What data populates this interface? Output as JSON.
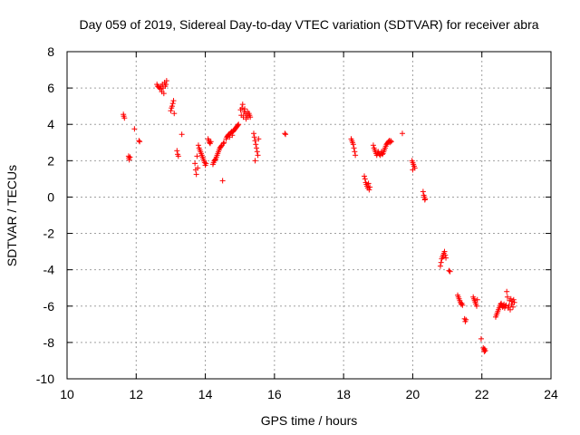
{
  "chart_data": {
    "type": "scatter",
    "title": "Day 059 of 2019, Sidereal Day-to-day VTEC variation (SDTVAR) for receiver abra",
    "xlabel": "GPS time / hours",
    "ylabel": "SDTVAR / TECUs",
    "xlim": [
      10,
      24
    ],
    "ylim": [
      -10,
      8
    ],
    "xticks": [
      "10",
      "12",
      "14",
      "16",
      "18",
      "20",
      "22",
      "24"
    ],
    "yticks": [
      "-10",
      "-8",
      "-6",
      "-4",
      "-2",
      "0",
      "2",
      "4",
      "6",
      "8"
    ],
    "grid": true,
    "marker": "+",
    "color": "#ff0000",
    "series": [
      {
        "name": "SDTVAR",
        "points": [
          [
            11.63,
            4.55
          ],
          [
            11.64,
            4.45
          ],
          [
            11.66,
            4.35
          ],
          [
            11.78,
            2.25
          ],
          [
            11.79,
            2.15
          ],
          [
            11.8,
            2.05
          ],
          [
            11.82,
            2.2
          ],
          [
            11.95,
            3.75
          ],
          [
            12.08,
            3.1
          ],
          [
            12.1,
            3.05
          ],
          [
            12.6,
            6.2
          ],
          [
            12.62,
            6.1
          ],
          [
            12.65,
            6.05
          ],
          [
            12.68,
            6.0
          ],
          [
            12.7,
            5.95
          ],
          [
            12.72,
            6.1
          ],
          [
            12.74,
            5.8
          ],
          [
            12.76,
            6.2
          ],
          [
            12.78,
            6.0
          ],
          [
            12.8,
            5.7
          ],
          [
            12.82,
            6.3
          ],
          [
            12.84,
            6.1
          ],
          [
            12.86,
            6.2
          ],
          [
            12.88,
            6.4
          ],
          [
            13.0,
            4.75
          ],
          [
            13.02,
            4.9
          ],
          [
            13.04,
            5.0
          ],
          [
            13.06,
            5.15
          ],
          [
            13.08,
            5.3
          ],
          [
            13.1,
            4.6
          ],
          [
            13.18,
            2.55
          ],
          [
            13.2,
            2.35
          ],
          [
            13.22,
            2.25
          ],
          [
            13.32,
            3.45
          ],
          [
            13.7,
            1.85
          ],
          [
            13.72,
            1.5
          ],
          [
            13.74,
            1.25
          ],
          [
            13.76,
            2.25
          ],
          [
            13.78,
            1.6
          ],
          [
            13.8,
            2.85
          ],
          [
            13.82,
            2.7
          ],
          [
            13.84,
            2.6
          ],
          [
            13.86,
            2.5
          ],
          [
            13.88,
            2.4
          ],
          [
            13.9,
            2.3
          ],
          [
            13.92,
            2.2
          ],
          [
            13.94,
            2.1
          ],
          [
            13.96,
            2.0
          ],
          [
            13.98,
            1.9
          ],
          [
            14.0,
            1.75
          ],
          [
            14.02,
            1.85
          ],
          [
            14.08,
            3.2
          ],
          [
            14.1,
            3.1
          ],
          [
            14.12,
            3.0
          ],
          [
            14.14,
            2.95
          ],
          [
            14.16,
            3.05
          ],
          [
            14.22,
            1.8
          ],
          [
            14.24,
            1.9
          ],
          [
            14.26,
            2.0
          ],
          [
            14.28,
            2.05
          ],
          [
            14.3,
            2.1
          ],
          [
            14.32,
            2.2
          ],
          [
            14.34,
            2.3
          ],
          [
            14.36,
            2.4
          ],
          [
            14.38,
            2.5
          ],
          [
            14.4,
            2.6
          ],
          [
            14.42,
            2.7
          ],
          [
            14.44,
            2.75
          ],
          [
            14.46,
            2.8
          ],
          [
            14.48,
            2.85
          ],
          [
            14.5,
            0.9
          ],
          [
            14.52,
            2.95
          ],
          [
            14.54,
            3.0
          ],
          [
            14.6,
            3.2
          ],
          [
            14.62,
            3.3
          ],
          [
            14.64,
            3.35
          ],
          [
            14.66,
            3.4
          ],
          [
            14.68,
            3.45
          ],
          [
            14.7,
            3.3
          ],
          [
            14.72,
            3.5
          ],
          [
            14.74,
            3.55
          ],
          [
            14.76,
            3.6
          ],
          [
            14.78,
            3.4
          ],
          [
            14.8,
            3.6
          ],
          [
            14.82,
            3.65
          ],
          [
            14.84,
            3.7
          ],
          [
            14.86,
            3.75
          ],
          [
            14.88,
            3.8
          ],
          [
            14.9,
            3.85
          ],
          [
            14.92,
            3.9
          ],
          [
            14.94,
            3.95
          ],
          [
            14.96,
            4.0
          ],
          [
            15.02,
            4.8
          ],
          [
            15.04,
            4.5
          ],
          [
            15.06,
            4.9
          ],
          [
            15.08,
            5.1
          ],
          [
            15.1,
            4.4
          ],
          [
            15.12,
            4.7
          ],
          [
            15.14,
            4.85
          ],
          [
            15.16,
            4.6
          ],
          [
            15.18,
            4.3
          ],
          [
            15.2,
            4.5
          ],
          [
            15.22,
            4.7
          ],
          [
            15.24,
            4.4
          ],
          [
            15.26,
            4.6
          ],
          [
            15.28,
            4.5
          ],
          [
            15.3,
            4.4
          ],
          [
            15.4,
            3.5
          ],
          [
            15.42,
            3.3
          ],
          [
            15.44,
            3.1
          ],
          [
            15.46,
            2.9
          ],
          [
            15.48,
            2.7
          ],
          [
            15.5,
            2.5
          ],
          [
            15.52,
            2.3
          ],
          [
            15.44,
            2.0
          ],
          [
            15.54,
            3.2
          ],
          [
            16.3,
            3.5
          ],
          [
            16.32,
            3.45
          ],
          [
            18.22,
            3.2
          ],
          [
            18.24,
            3.1
          ],
          [
            18.26,
            3.0
          ],
          [
            18.28,
            2.9
          ],
          [
            18.3,
            2.7
          ],
          [
            18.32,
            2.5
          ],
          [
            18.34,
            2.3
          ],
          [
            18.6,
            1.15
          ],
          [
            18.62,
            1.0
          ],
          [
            18.64,
            0.8
          ],
          [
            18.66,
            0.7
          ],
          [
            18.68,
            0.6
          ],
          [
            18.7,
            0.5
          ],
          [
            18.72,
            0.75
          ],
          [
            18.74,
            0.4
          ],
          [
            18.76,
            0.55
          ],
          [
            18.86,
            2.85
          ],
          [
            18.88,
            2.7
          ],
          [
            18.9,
            2.6
          ],
          [
            18.92,
            2.5
          ],
          [
            18.94,
            2.4
          ],
          [
            18.96,
            2.3
          ],
          [
            18.98,
            2.4
          ],
          [
            19.0,
            2.5
          ],
          [
            19.02,
            2.4
          ],
          [
            19.04,
            2.35
          ],
          [
            19.06,
            2.3
          ],
          [
            19.08,
            2.4
          ],
          [
            19.1,
            2.5
          ],
          [
            19.12,
            2.35
          ],
          [
            19.14,
            2.4
          ],
          [
            19.16,
            2.5
          ],
          [
            19.18,
            2.6
          ],
          [
            19.2,
            2.7
          ],
          [
            19.22,
            2.8
          ],
          [
            19.24,
            2.9
          ],
          [
            19.26,
            2.95
          ],
          [
            19.28,
            3.0
          ],
          [
            19.3,
            3.05
          ],
          [
            19.32,
            3.1
          ],
          [
            19.34,
            3.0
          ],
          [
            19.36,
            3.1
          ],
          [
            19.38,
            3.05
          ],
          [
            19.7,
            3.5
          ],
          [
            19.98,
            2.0
          ],
          [
            20.0,
            1.9
          ],
          [
            20.02,
            1.8
          ],
          [
            20.04,
            1.7
          ],
          [
            20.06,
            1.6
          ],
          [
            20.0,
            1.5
          ],
          [
            20.3,
            0.3
          ],
          [
            20.32,
            0.1
          ],
          [
            20.34,
            0.0
          ],
          [
            20.36,
            -0.1
          ],
          [
            20.35,
            -0.15
          ],
          [
            20.8,
            -3.8
          ],
          [
            20.82,
            -3.6
          ],
          [
            20.84,
            -3.4
          ],
          [
            20.86,
            -3.3
          ],
          [
            20.88,
            -3.2
          ],
          [
            20.9,
            -3.1
          ],
          [
            20.92,
            -3.0
          ],
          [
            20.94,
            -3.2
          ],
          [
            20.96,
            -3.35
          ],
          [
            21.05,
            -4.05
          ],
          [
            21.08,
            -4.1
          ],
          [
            21.3,
            -5.4
          ],
          [
            21.32,
            -5.5
          ],
          [
            21.34,
            -5.6
          ],
          [
            21.36,
            -5.7
          ],
          [
            21.38,
            -5.8
          ],
          [
            21.4,
            -5.9
          ],
          [
            21.42,
            -5.85
          ],
          [
            21.44,
            -5.95
          ],
          [
            21.5,
            -6.7
          ],
          [
            21.52,
            -6.85
          ],
          [
            21.54,
            -6.75
          ],
          [
            21.75,
            -5.5
          ],
          [
            21.77,
            -5.6
          ],
          [
            21.79,
            -5.7
          ],
          [
            21.81,
            -5.8
          ],
          [
            21.83,
            -5.9
          ],
          [
            21.85,
            -6.0
          ],
          [
            21.87,
            -5.65
          ],
          [
            21.98,
            -7.8
          ],
          [
            22.04,
            -8.3
          ],
          [
            22.06,
            -8.4
          ],
          [
            22.08,
            -8.35
          ],
          [
            22.1,
            -8.45
          ],
          [
            22.07,
            -8.5
          ],
          [
            22.4,
            -6.6
          ],
          [
            22.42,
            -6.5
          ],
          [
            22.44,
            -6.4
          ],
          [
            22.46,
            -6.3
          ],
          [
            22.48,
            -6.2
          ],
          [
            22.5,
            -6.1
          ],
          [
            22.52,
            -6.0
          ],
          [
            22.54,
            -5.9
          ],
          [
            22.56,
            -5.85
          ],
          [
            22.58,
            -5.95
          ],
          [
            22.6,
            -6.05
          ],
          [
            22.62,
            -6.0
          ],
          [
            22.64,
            -5.9
          ],
          [
            22.66,
            -6.1
          ],
          [
            22.68,
            -6.0
          ],
          [
            22.7,
            -5.95
          ],
          [
            22.72,
            -5.2
          ],
          [
            22.74,
            -5.5
          ],
          [
            22.76,
            -6.1
          ],
          [
            22.78,
            -6.0
          ],
          [
            22.8,
            -5.7
          ],
          [
            22.82,
            -6.2
          ],
          [
            22.84,
            -5.6
          ],
          [
            22.86,
            -5.9
          ],
          [
            22.88,
            -5.75
          ],
          [
            22.9,
            -6.05
          ],
          [
            22.92,
            -5.65
          ],
          [
            22.94,
            -5.8
          ]
        ]
      }
    ]
  }
}
